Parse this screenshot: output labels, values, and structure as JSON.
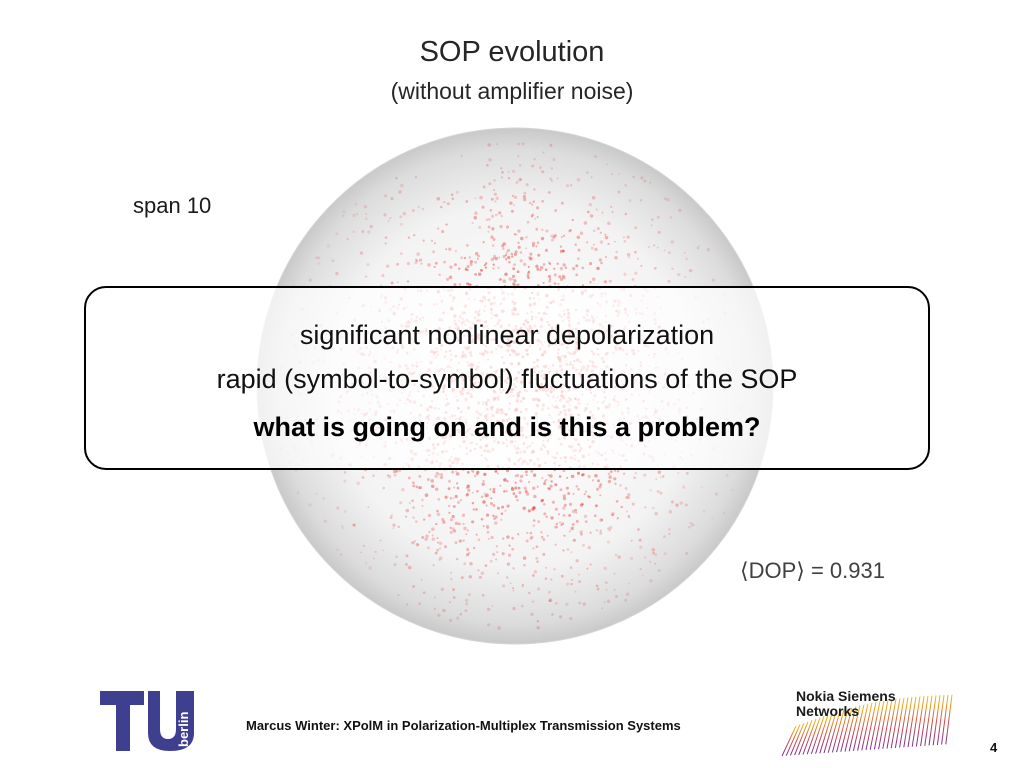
{
  "slide": {
    "title": "SOP evolution",
    "subtitle": "(without amplifier noise)",
    "span_label": "span 10",
    "dop_label": "⟨DOP⟩ = 0.931",
    "callout": {
      "line1": "significant nonlinear depolarization",
      "line2": "rapid (symbol-to-symbol) fluctuations of the SOP",
      "line3": "what is going on and is this a problem?"
    },
    "footer": "Marcus Winter: XPolM in Polarization-Multiplex Transmission Systems",
    "page_number": "4",
    "logos": {
      "left": "tu-berlin-logo",
      "right_text_line1": "Nokia Siemens",
      "right_text_line2": "Networks",
      "tu_text": "berlin"
    }
  },
  "colors": {
    "scatter": "#e0302c",
    "tu_blue": "#3f3f8f",
    "nsn_gradient_start": "#7b2d8e",
    "nsn_gradient_end": "#f2c200"
  }
}
